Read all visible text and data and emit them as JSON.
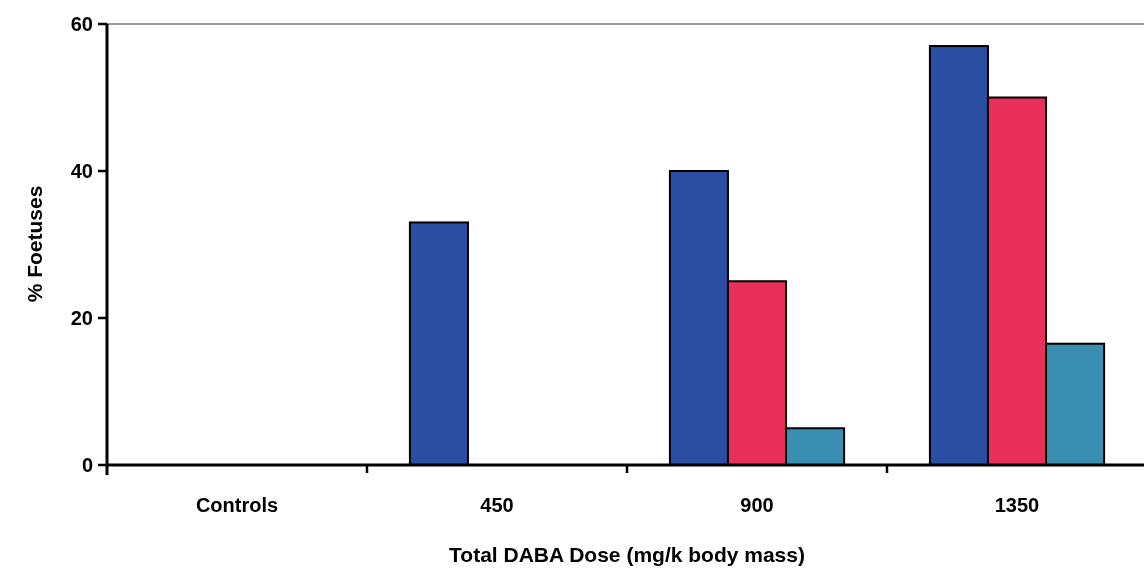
{
  "chart_data": {
    "type": "bar",
    "xlabel": "Total DABA Dose (mg/k body mass)",
    "ylabel": "% Foetuses",
    "categories": [
      "Controls",
      "450",
      "900",
      "1350"
    ],
    "series": [
      {
        "color": "#2b4ea3",
        "values": [
          0,
          33,
          40,
          57
        ]
      },
      {
        "color": "#e8305a",
        "values": [
          0,
          0,
          25,
          50
        ]
      },
      {
        "color": "#3a8fb0",
        "values": [
          0,
          0,
          5,
          16.5
        ]
      }
    ],
    "ylim": [
      0,
      60
    ],
    "yticks": [
      0,
      20,
      40,
      60
    ],
    "grid": false
  }
}
